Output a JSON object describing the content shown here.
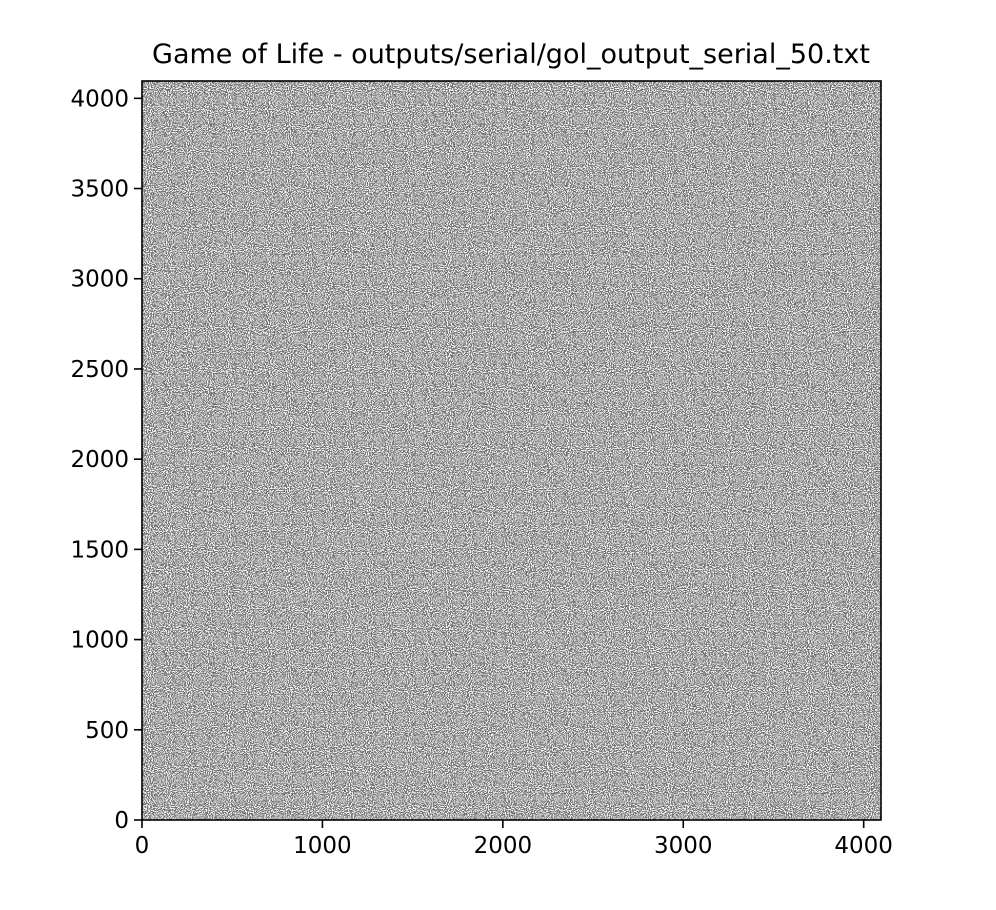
{
  "chart_data": {
    "type": "heatmap",
    "title": "Game of Life - outputs/serial/gol_output_serial_50.txt",
    "xlabel": "",
    "ylabel": "",
    "xlim": [
      0,
      4096
    ],
    "ylim": [
      0,
      4096
    ],
    "grid_size": [
      4096,
      4096
    ],
    "x_ticks": [
      0,
      1000,
      2000,
      3000,
      4000
    ],
    "y_ticks": [
      0,
      500,
      1000,
      1500,
      2000,
      2500,
      3000,
      3500,
      4000
    ],
    "x_tick_labels": [
      "0",
      "1000",
      "2000",
      "3000",
      "4000"
    ],
    "y_tick_labels": [
      "0",
      "500",
      "1000",
      "1500",
      "2000",
      "2500",
      "3000",
      "3500",
      "4000"
    ],
    "colormap": "binary",
    "alive_color": "#000000",
    "dead_color": "#ffffff",
    "approx_alive_fraction": 0.3,
    "grid": false,
    "legend": "none"
  }
}
